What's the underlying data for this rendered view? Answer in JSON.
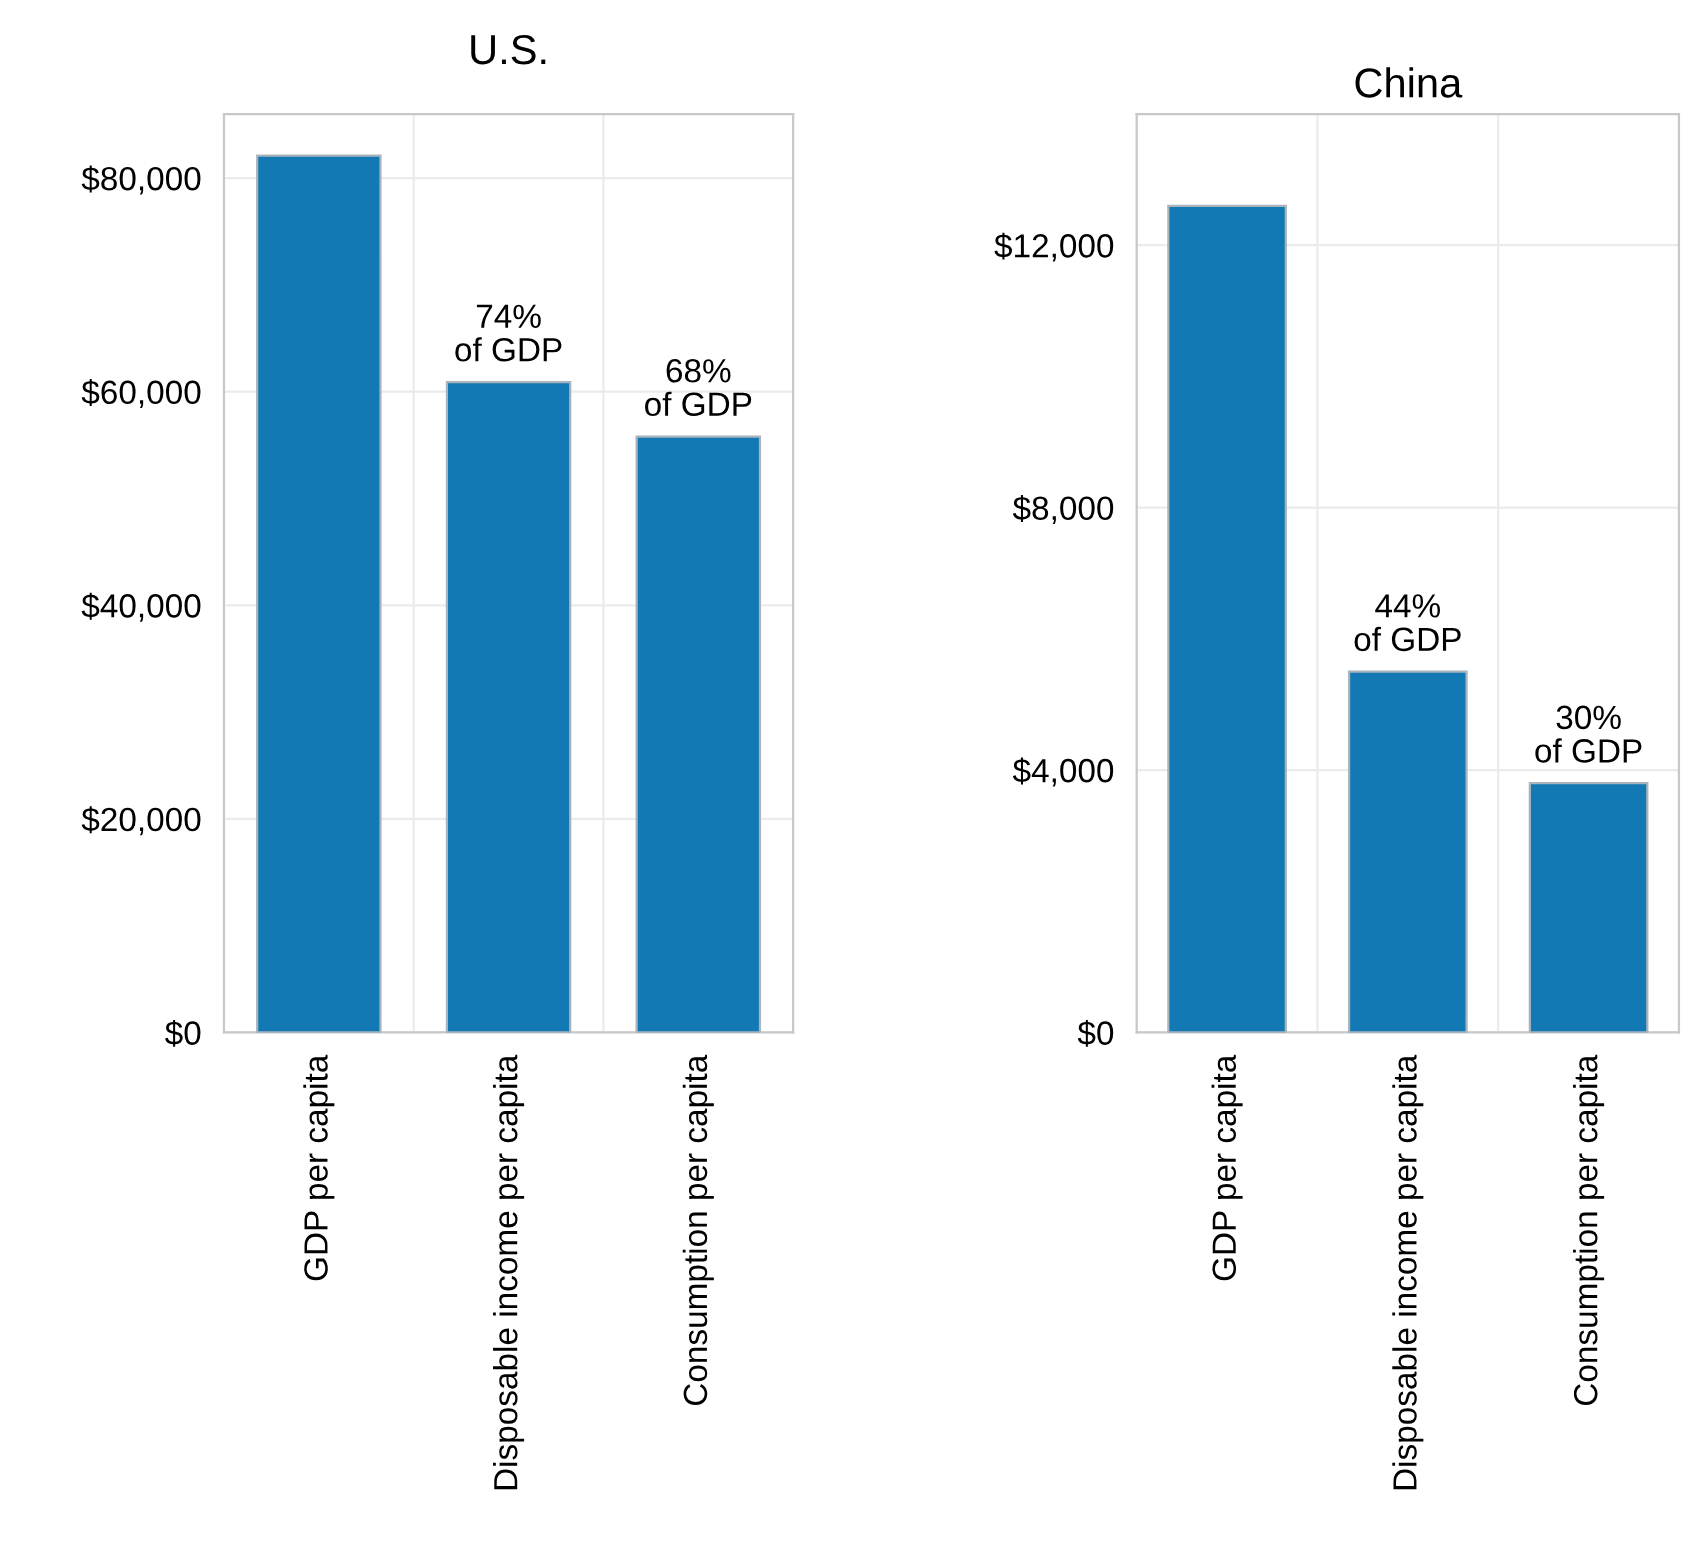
{
  "chart_data": [
    {
      "type": "bar",
      "title": "U.S.",
      "categories": [
        "GDP per capita",
        "Disposable income per capita",
        "Consumption per capita"
      ],
      "values": [
        82100,
        60900,
        55800
      ],
      "color": "#1279b4",
      "annotations": [
        {
          "text": "74%\nof GDP",
          "x": "Disposable income per capita",
          "y": 60900
        },
        {
          "text": "68%\nof GDP",
          "x": "Consumption per capita",
          "y": 55800
        }
      ],
      "ylim": [
        0,
        86000
      ],
      "yticks": [
        {
          "value": 0,
          "label": "$0"
        },
        {
          "value": 20000,
          "label": "$20,000"
        },
        {
          "value": 40000,
          "label": "$40,000"
        },
        {
          "value": 60000,
          "label": "$60,000"
        },
        {
          "value": 80000,
          "label": "$80,000"
        }
      ],
      "grid": true
    },
    {
      "type": "bar",
      "title": "China",
      "categories": [
        "GDP per capita",
        "Disposable income per capita",
        "Consumption per capita"
      ],
      "values": [
        12600,
        5500,
        3800
      ],
      "color": "#1279b4",
      "annotations": [
        {
          "text": "44%\nof GDP",
          "x": "Disposable income per capita",
          "y": 5500
        },
        {
          "text": "30%\nof GDP",
          "x": "Consumption per capita",
          "y": 3800
        }
      ],
      "ylim": [
        0,
        14000
      ],
      "yticks": [
        {
          "value": 0,
          "label": "$0"
        },
        {
          "value": 4000,
          "label": "$4,000"
        },
        {
          "value": 8000,
          "label": "$8,000"
        },
        {
          "value": 12000,
          "label": "$12,000"
        }
      ],
      "grid": true
    }
  ]
}
